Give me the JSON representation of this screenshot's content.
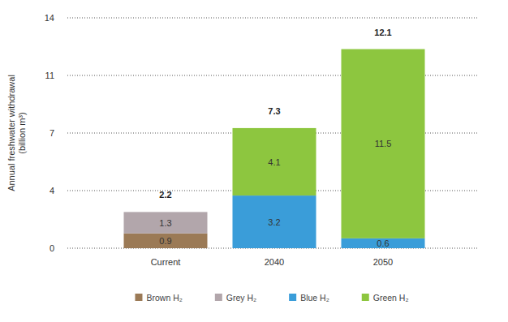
{
  "chart_data": {
    "type": "bar",
    "stacked": true,
    "data_labels": true,
    "grid": true,
    "legend": "bottom",
    "ylabel": "Annual freshwater withdrawal\n(billion m³)",
    "categories": [
      "Current",
      "2040",
      "2050"
    ],
    "series": [
      {
        "name": "Brown H₂",
        "color": "#9b7a56",
        "values": [
          0.9,
          null,
          null
        ]
      },
      {
        "name": "Grey H₂",
        "color": "#b2a6ab",
        "values": [
          1.3,
          null,
          null
        ]
      },
      {
        "name": "Blue H₂",
        "color": "#3a9dd9",
        "values": [
          null,
          3.2,
          0.6
        ]
      },
      {
        "name": "Green H₂",
        "color": "#8dc63f",
        "values": [
          null,
          4.1,
          11.5
        ]
      }
    ],
    "totals": [
      2.2,
      7.3,
      12.1
    ],
    "ylim": [
      0,
      14
    ],
    "yticks": [
      0,
      {
        "value": 3.5,
        "label": "4"
      },
      7,
      {
        "value": 10.5,
        "label": "11"
      },
      14
    ]
  }
}
